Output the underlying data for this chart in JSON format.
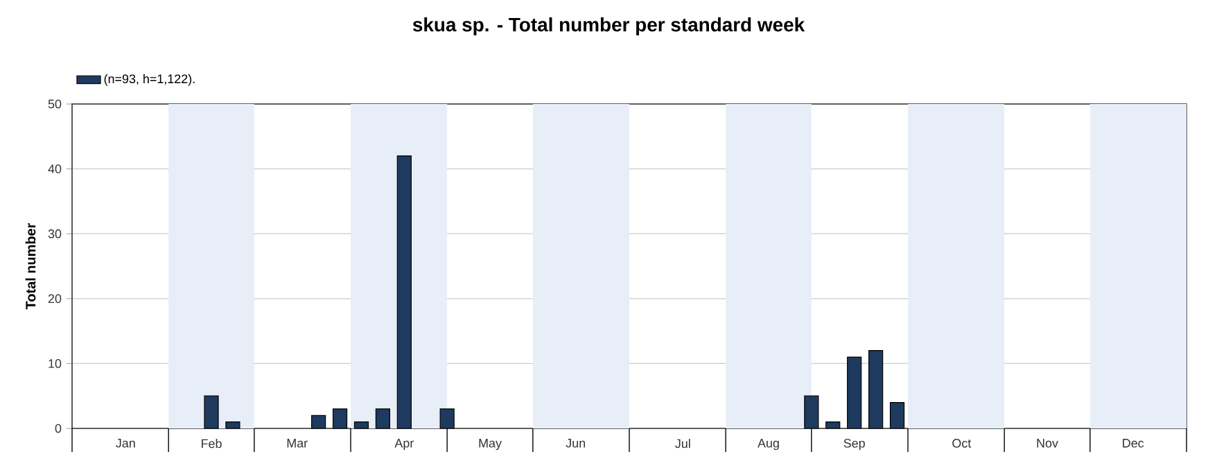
{
  "chart_data": {
    "type": "bar",
    "title": "skua sp. - Total number per standard week",
    "ylabel": "Total number",
    "categories": [
      null,
      null,
      "Jan",
      null,
      null,
      null,
      "Feb",
      null,
      null,
      null,
      "Mar",
      null,
      null,
      null,
      null,
      "Apr",
      null,
      null,
      null,
      "May",
      null,
      null,
      null,
      "Jun",
      null,
      null,
      null,
      null,
      "Jul",
      null,
      null,
      null,
      "Aug",
      null,
      null,
      null,
      "Sep",
      null,
      null,
      null,
      null,
      "Oct",
      null,
      null,
      null,
      "Nov",
      null,
      null,
      null,
      "Dec",
      null,
      null
    ],
    "series": [
      {
        "name": "(n=93, h=1,122).",
        "color": "#1f3a5f",
        "values": [
          null,
          null,
          null,
          null,
          null,
          null,
          5,
          1,
          null,
          null,
          null,
          2,
          3,
          1,
          3,
          42,
          null,
          3,
          null,
          null,
          null,
          null,
          null,
          null,
          null,
          null,
          null,
          null,
          null,
          null,
          null,
          null,
          null,
          null,
          5,
          1,
          11,
          12,
          4,
          null,
          null,
          null,
          null,
          null,
          null,
          null,
          null,
          null,
          null,
          null,
          null,
          null
        ]
      }
    ],
    "ylim": [
      0,
      50
    ],
    "yticks": [
      0,
      10,
      20,
      30,
      40,
      50
    ],
    "grid": "y",
    "legend": "top left"
  }
}
